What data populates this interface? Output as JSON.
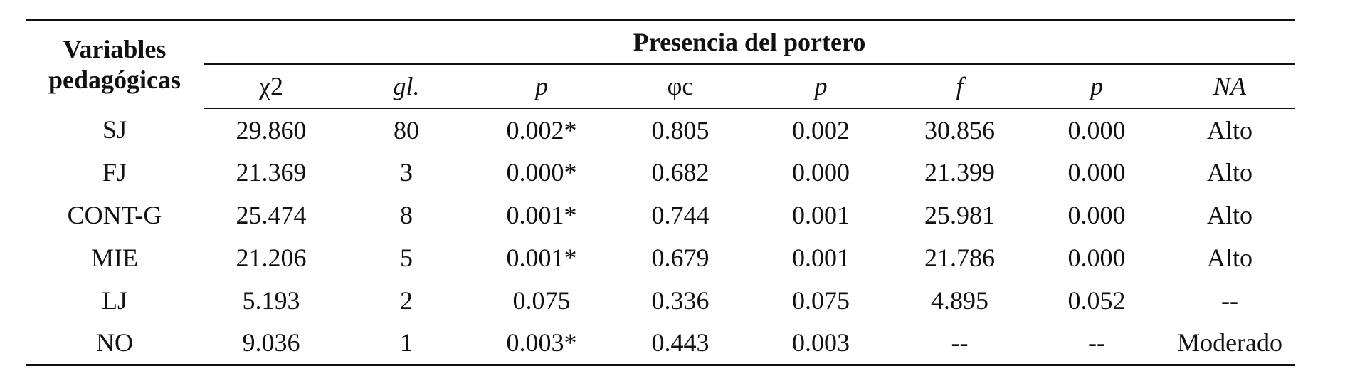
{
  "table": {
    "row_header": "Variables pedagógicas",
    "row_header_line1": "Variables",
    "row_header_line2": "pedagógicas",
    "group_header": "Presencia del portero",
    "columns": [
      "χ2",
      "gl.",
      "p",
      "φc",
      "p",
      "f",
      "p",
      "NA"
    ],
    "rows": [
      {
        "variable": "SJ",
        "chi2": "29.860",
        "gl": "80",
        "p1": "0.002*",
        "phic": "0.805",
        "p2": "0.002",
        "f": "30.856",
        "p3": "0.000",
        "na": "Alto"
      },
      {
        "variable": "FJ",
        "chi2": "21.369",
        "gl": "3",
        "p1": "0.000*",
        "phic": "0.682",
        "p2": "0.000",
        "f": "21.399",
        "p3": "0.000",
        "na": "Alto"
      },
      {
        "variable": "CONT-G",
        "chi2": "25.474",
        "gl": "8",
        "p1": "0.001*",
        "phic": "0.744",
        "p2": "0.001",
        "f": "25.981",
        "p3": "0.000",
        "na": "Alto"
      },
      {
        "variable": "MIE",
        "chi2": "21.206",
        "gl": "5",
        "p1": "0.001*",
        "phic": "0.679",
        "p2": "0.001",
        "f": "21.786",
        "p3": "0.000",
        "na": "Alto"
      },
      {
        "variable": "LJ",
        "chi2": "5.193",
        "gl": "2",
        "p1": "0.075",
        "phic": "0.336",
        "p2": "0.075",
        "f": "4.895",
        "p3": "0.052",
        "na": "--"
      },
      {
        "variable": "NO",
        "chi2": "9.036",
        "gl": "1",
        "p1": "0.003*",
        "phic": "0.443",
        "p2": "0.003",
        "f": "--",
        "p3": "--",
        "na": "Moderado"
      }
    ]
  }
}
